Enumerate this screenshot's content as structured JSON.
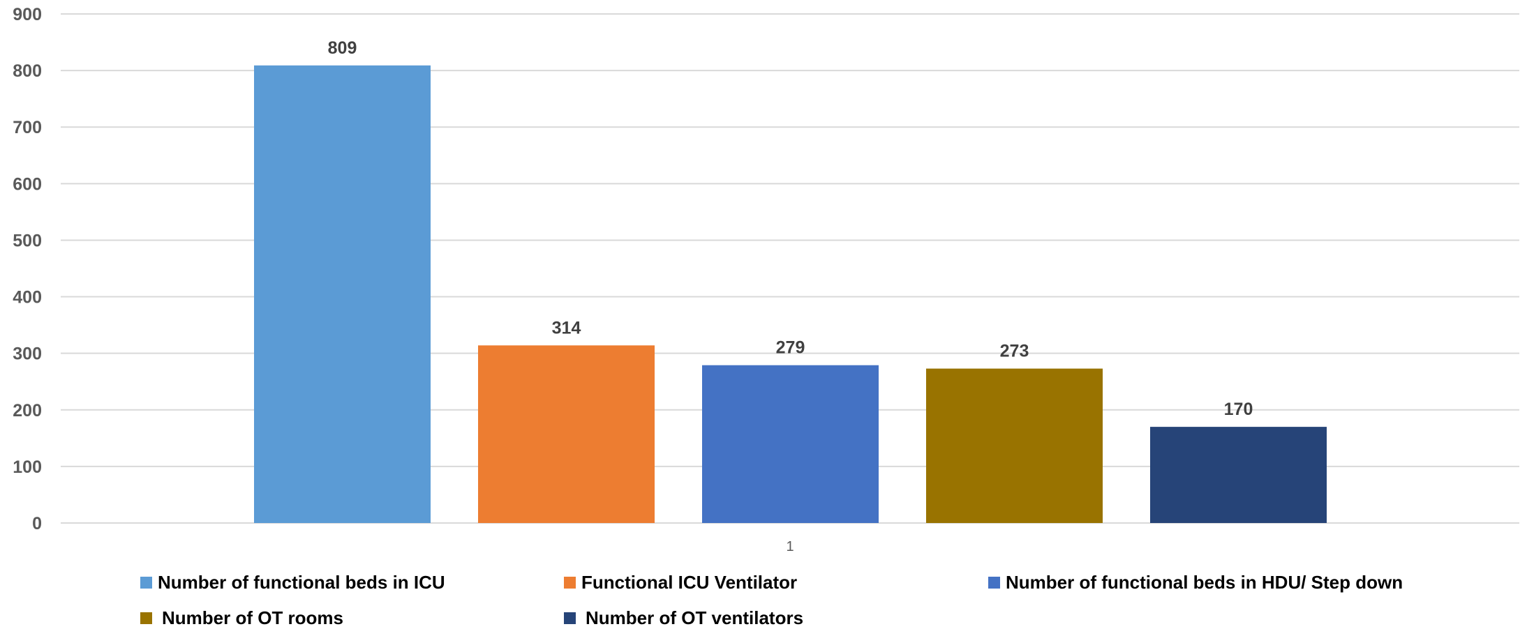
{
  "chart_data": {
    "type": "bar",
    "categories": [
      "1"
    ],
    "series": [
      {
        "name": "Number of functional beds in ICU",
        "values": [
          809
        ],
        "color": "#5B9BD5"
      },
      {
        "name": "Functional ICU Ventilator",
        "values": [
          314
        ],
        "color": "#ED7D31"
      },
      {
        "name": "Number of functional beds in HDU/ Step down",
        "values": [
          279
        ],
        "color": "#4472C4"
      },
      {
        "name": "Number of OT rooms",
        "values": [
          273
        ],
        "color": "#997300"
      },
      {
        "name": "Number of OT ventilators",
        "values": [
          170
        ],
        "color": "#264478"
      }
    ],
    "ylim": [
      0,
      900
    ],
    "yticks": [
      0,
      100,
      200,
      300,
      400,
      500,
      600,
      700,
      800,
      900
    ],
    "grid": true,
    "data_labels": true,
    "legend_position": "bottom"
  }
}
